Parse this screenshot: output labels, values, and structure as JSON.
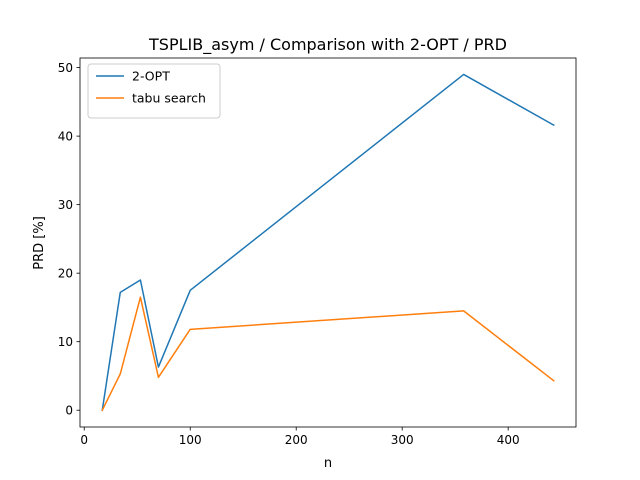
{
  "chart_data": {
    "type": "line",
    "title": "TSPLIB_asym / Comparison with 2-OPT / PRD",
    "xlabel": "n",
    "ylabel": "PRD [%]",
    "xlim": [
      -4,
      464
    ],
    "ylim": [
      -2.45,
      51.4
    ],
    "xticks": [
      0,
      100,
      200,
      300,
      400
    ],
    "yticks": [
      0,
      10,
      20,
      30,
      40,
      50
    ],
    "grid": false,
    "legend_position": "top-left",
    "series": [
      {
        "name": "2-OPT",
        "color": "#1f77b4",
        "x": [
          17,
          34,
          53,
          70,
          100,
          358,
          443
        ],
        "y": [
          0,
          17.2,
          19.0,
          6.3,
          17.5,
          49.0,
          41.6
        ]
      },
      {
        "name": "tabu search",
        "color": "#ff7f0e",
        "x": [
          17,
          34,
          53,
          70,
          100,
          358,
          443
        ],
        "y": [
          0,
          5.3,
          16.5,
          4.8,
          11.8,
          14.5,
          4.3
        ]
      }
    ]
  }
}
